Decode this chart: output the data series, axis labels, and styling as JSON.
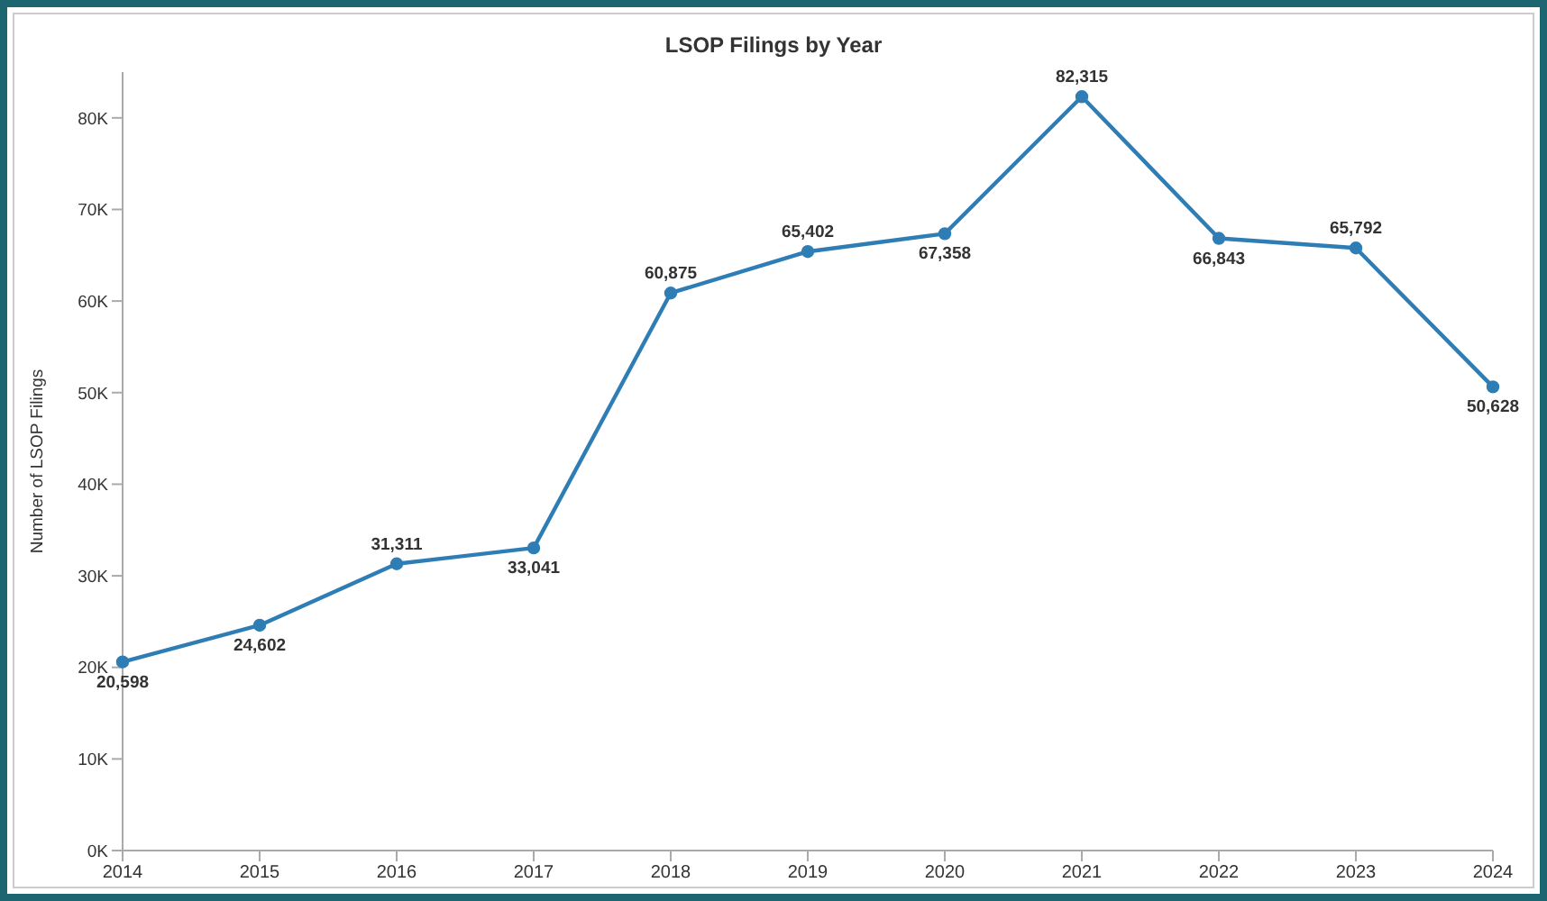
{
  "chart_data": {
    "type": "line",
    "title": "LSOP Filings by Year",
    "ylabel": "Number of LSOP Filings",
    "categories": [
      "2014",
      "2015",
      "2016",
      "2017",
      "2018",
      "2019",
      "2020",
      "2021",
      "2022",
      "2023",
      "2024"
    ],
    "series": [
      {
        "color": "#2e7db5",
        "values": [
          20598,
          24602,
          31311,
          33041,
          60875,
          65402,
          67358,
          82315,
          66843,
          65792,
          50628
        ],
        "value_labels": [
          "20,598",
          "24,602",
          "31,311",
          "33,041",
          "60,875",
          "65,402",
          "67,358",
          "82,315",
          "66,843",
          "65,792",
          "50,628"
        ]
      }
    ],
    "ylim": [
      0,
      85000
    ],
    "yticks": [
      {
        "value": 0,
        "label": "0K"
      },
      {
        "value": 10000,
        "label": "10K"
      },
      {
        "value": 20000,
        "label": "20K"
      },
      {
        "value": 30000,
        "label": "30K"
      },
      {
        "value": 40000,
        "label": "40K"
      },
      {
        "value": 50000,
        "label": "50K"
      },
      {
        "value": 60000,
        "label": "60K"
      },
      {
        "value": 70000,
        "label": "70K"
      },
      {
        "value": 80000,
        "label": "80K"
      }
    ],
    "grid": false,
    "legend": false,
    "marker": "circle",
    "line_style": "solid"
  }
}
